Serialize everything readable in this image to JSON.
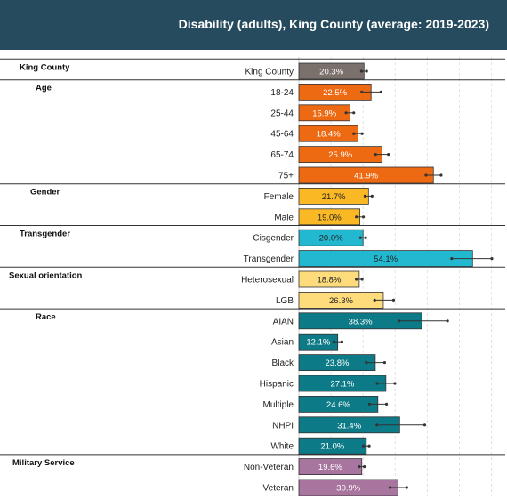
{
  "chart_data": {
    "type": "bar",
    "orientation": "horizontal",
    "title": "Disability (adults), King County (average: 2019-2023)",
    "value_format": "percent, one decimal",
    "error_bars": true,
    "grid": true,
    "xlim": [
      0,
      60
    ],
    "groups": [
      {
        "name": "King County",
        "color": "#7a706c",
        "label_color": "#ffffff",
        "items": [
          {
            "category": "King County",
            "value": 20.3,
            "label": "20.3%",
            "ci": [
              19.5,
              21.1
            ]
          }
        ]
      },
      {
        "name": "Age",
        "color": "#ee6a12",
        "label_color": "#ffffff",
        "items": [
          {
            "category": "18-24",
            "value": 22.5,
            "label": "22.5%",
            "ci": [
              19.6,
              25.6
            ]
          },
          {
            "category": "25-44",
            "value": 15.9,
            "label": "15.9%",
            "ci": [
              14.7,
              17.1
            ]
          },
          {
            "category": "45-64",
            "value": 18.4,
            "label": "18.4%",
            "ci": [
              17.1,
              19.7
            ]
          },
          {
            "category": "65-74",
            "value": 25.9,
            "label": "25.9%",
            "ci": [
              23.9,
              27.9
            ]
          },
          {
            "category": "75+",
            "value": 41.9,
            "label": "41.9%",
            "ci": [
              39.6,
              44.3
            ]
          }
        ]
      },
      {
        "name": "Gender",
        "color": "#fbb825",
        "label_color": "#222222",
        "items": [
          {
            "category": "Female",
            "value": 21.7,
            "label": "21.7%",
            "ci": [
              20.6,
              22.8
            ]
          },
          {
            "category": "Male",
            "value": 19.0,
            "label": "19.0%",
            "ci": [
              17.9,
              20.1
            ]
          }
        ]
      },
      {
        "name": "Transgender",
        "color": "#22b8cf",
        "label_color": "#222222",
        "items": [
          {
            "category": "Cisgender",
            "value": 20.0,
            "label": "20.0%",
            "ci": [
              19.2,
              20.8
            ]
          },
          {
            "category": "Transgender",
            "value": 54.1,
            "label": "54.1%",
            "ci": [
              47.6,
              60.1
            ]
          }
        ]
      },
      {
        "name": "Sexual orientation",
        "color": "#fedc7c",
        "label_color": "#222222",
        "items": [
          {
            "category": "Heterosexual",
            "value": 18.8,
            "label": "18.8%",
            "ci": [
              17.9,
              19.7
            ]
          },
          {
            "category": "LGB",
            "value": 26.3,
            "label": "26.3%",
            "ci": [
              23.6,
              29.5
            ]
          }
        ]
      },
      {
        "name": "Race",
        "color": "#0d7a87",
        "label_color": "#ffffff",
        "items": [
          {
            "category": "AIAN",
            "value": 38.3,
            "label": "38.3%",
            "ci": [
              31.2,
              46.3
            ]
          },
          {
            "category": "Asian",
            "value": 12.1,
            "label": "12.1%",
            "ci": [
              10.9,
              13.4
            ]
          },
          {
            "category": "Black",
            "value": 23.8,
            "label": "23.8%",
            "ci": [
              21.0,
              26.7
            ]
          },
          {
            "category": "Hispanic",
            "value": 27.1,
            "label": "27.1%",
            "ci": [
              24.4,
              29.9
            ]
          },
          {
            "category": "Multiple",
            "value": 24.6,
            "label": "24.6%",
            "ci": [
              22.0,
              27.3
            ]
          },
          {
            "category": "NHPI",
            "value": 31.4,
            "label": "31.4%",
            "ci": [
              24.3,
              39.2
            ]
          },
          {
            "category": "White",
            "value": 21.0,
            "label": "21.0%",
            "ci": [
              20.1,
              21.9
            ]
          }
        ]
      },
      {
        "name": "Military Service",
        "color": "#a8759f",
        "label_color": "#ffffff",
        "items": [
          {
            "category": "Non-Veteran",
            "value": 19.6,
            "label": "19.6%",
            "ci": [
              18.8,
              20.4
            ]
          },
          {
            "category": "Veteran",
            "value": 30.9,
            "label": "30.9%",
            "ci": [
              28.4,
              33.6
            ]
          }
        ]
      }
    ]
  }
}
